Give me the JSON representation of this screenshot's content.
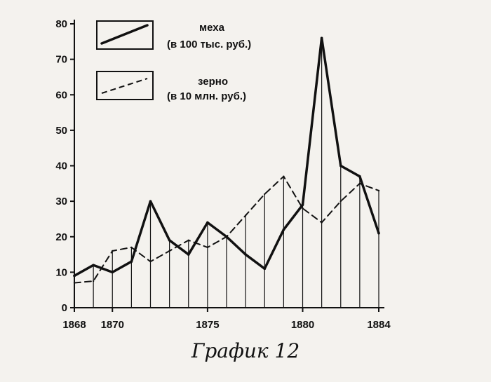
{
  "caption": "График 12",
  "colors": {
    "ink": "#111111",
    "paper": "#f4f2ee"
  },
  "chart_data": {
    "type": "line",
    "x": [
      1868,
      1869,
      1870,
      1871,
      1872,
      1873,
      1874,
      1875,
      1876,
      1877,
      1878,
      1879,
      1880,
      1881,
      1882,
      1883,
      1884
    ],
    "x_tick_labels": [
      "1868",
      "1870",
      "1875",
      "1880",
      "1884"
    ],
    "x_tick_values": [
      1868,
      1870,
      1875,
      1880,
      1884
    ],
    "y_ticks": [
      0,
      10,
      20,
      30,
      40,
      50,
      60,
      70,
      80
    ],
    "ylim": [
      0,
      80
    ],
    "xlim": [
      1868,
      1884
    ],
    "grid": "vertical lines at each year",
    "legend": {
      "placement": "top-left"
    },
    "series": [
      {
        "name_line1": "меха",
        "name_line2": "(в 100 тыс. руб.)",
        "style": "solid",
        "values": [
          9,
          12,
          10,
          13,
          30,
          19,
          15,
          24,
          20,
          15,
          11,
          22,
          29,
          76,
          40,
          37,
          21
        ]
      },
      {
        "name_line1": "зерно",
        "name_line2": "(в 10 млн. руб.)",
        "style": "dashed",
        "values": [
          7,
          7.5,
          16,
          17,
          13,
          16,
          19,
          17,
          20,
          26,
          32,
          37,
          28,
          24,
          30,
          35,
          33
        ]
      }
    ]
  }
}
